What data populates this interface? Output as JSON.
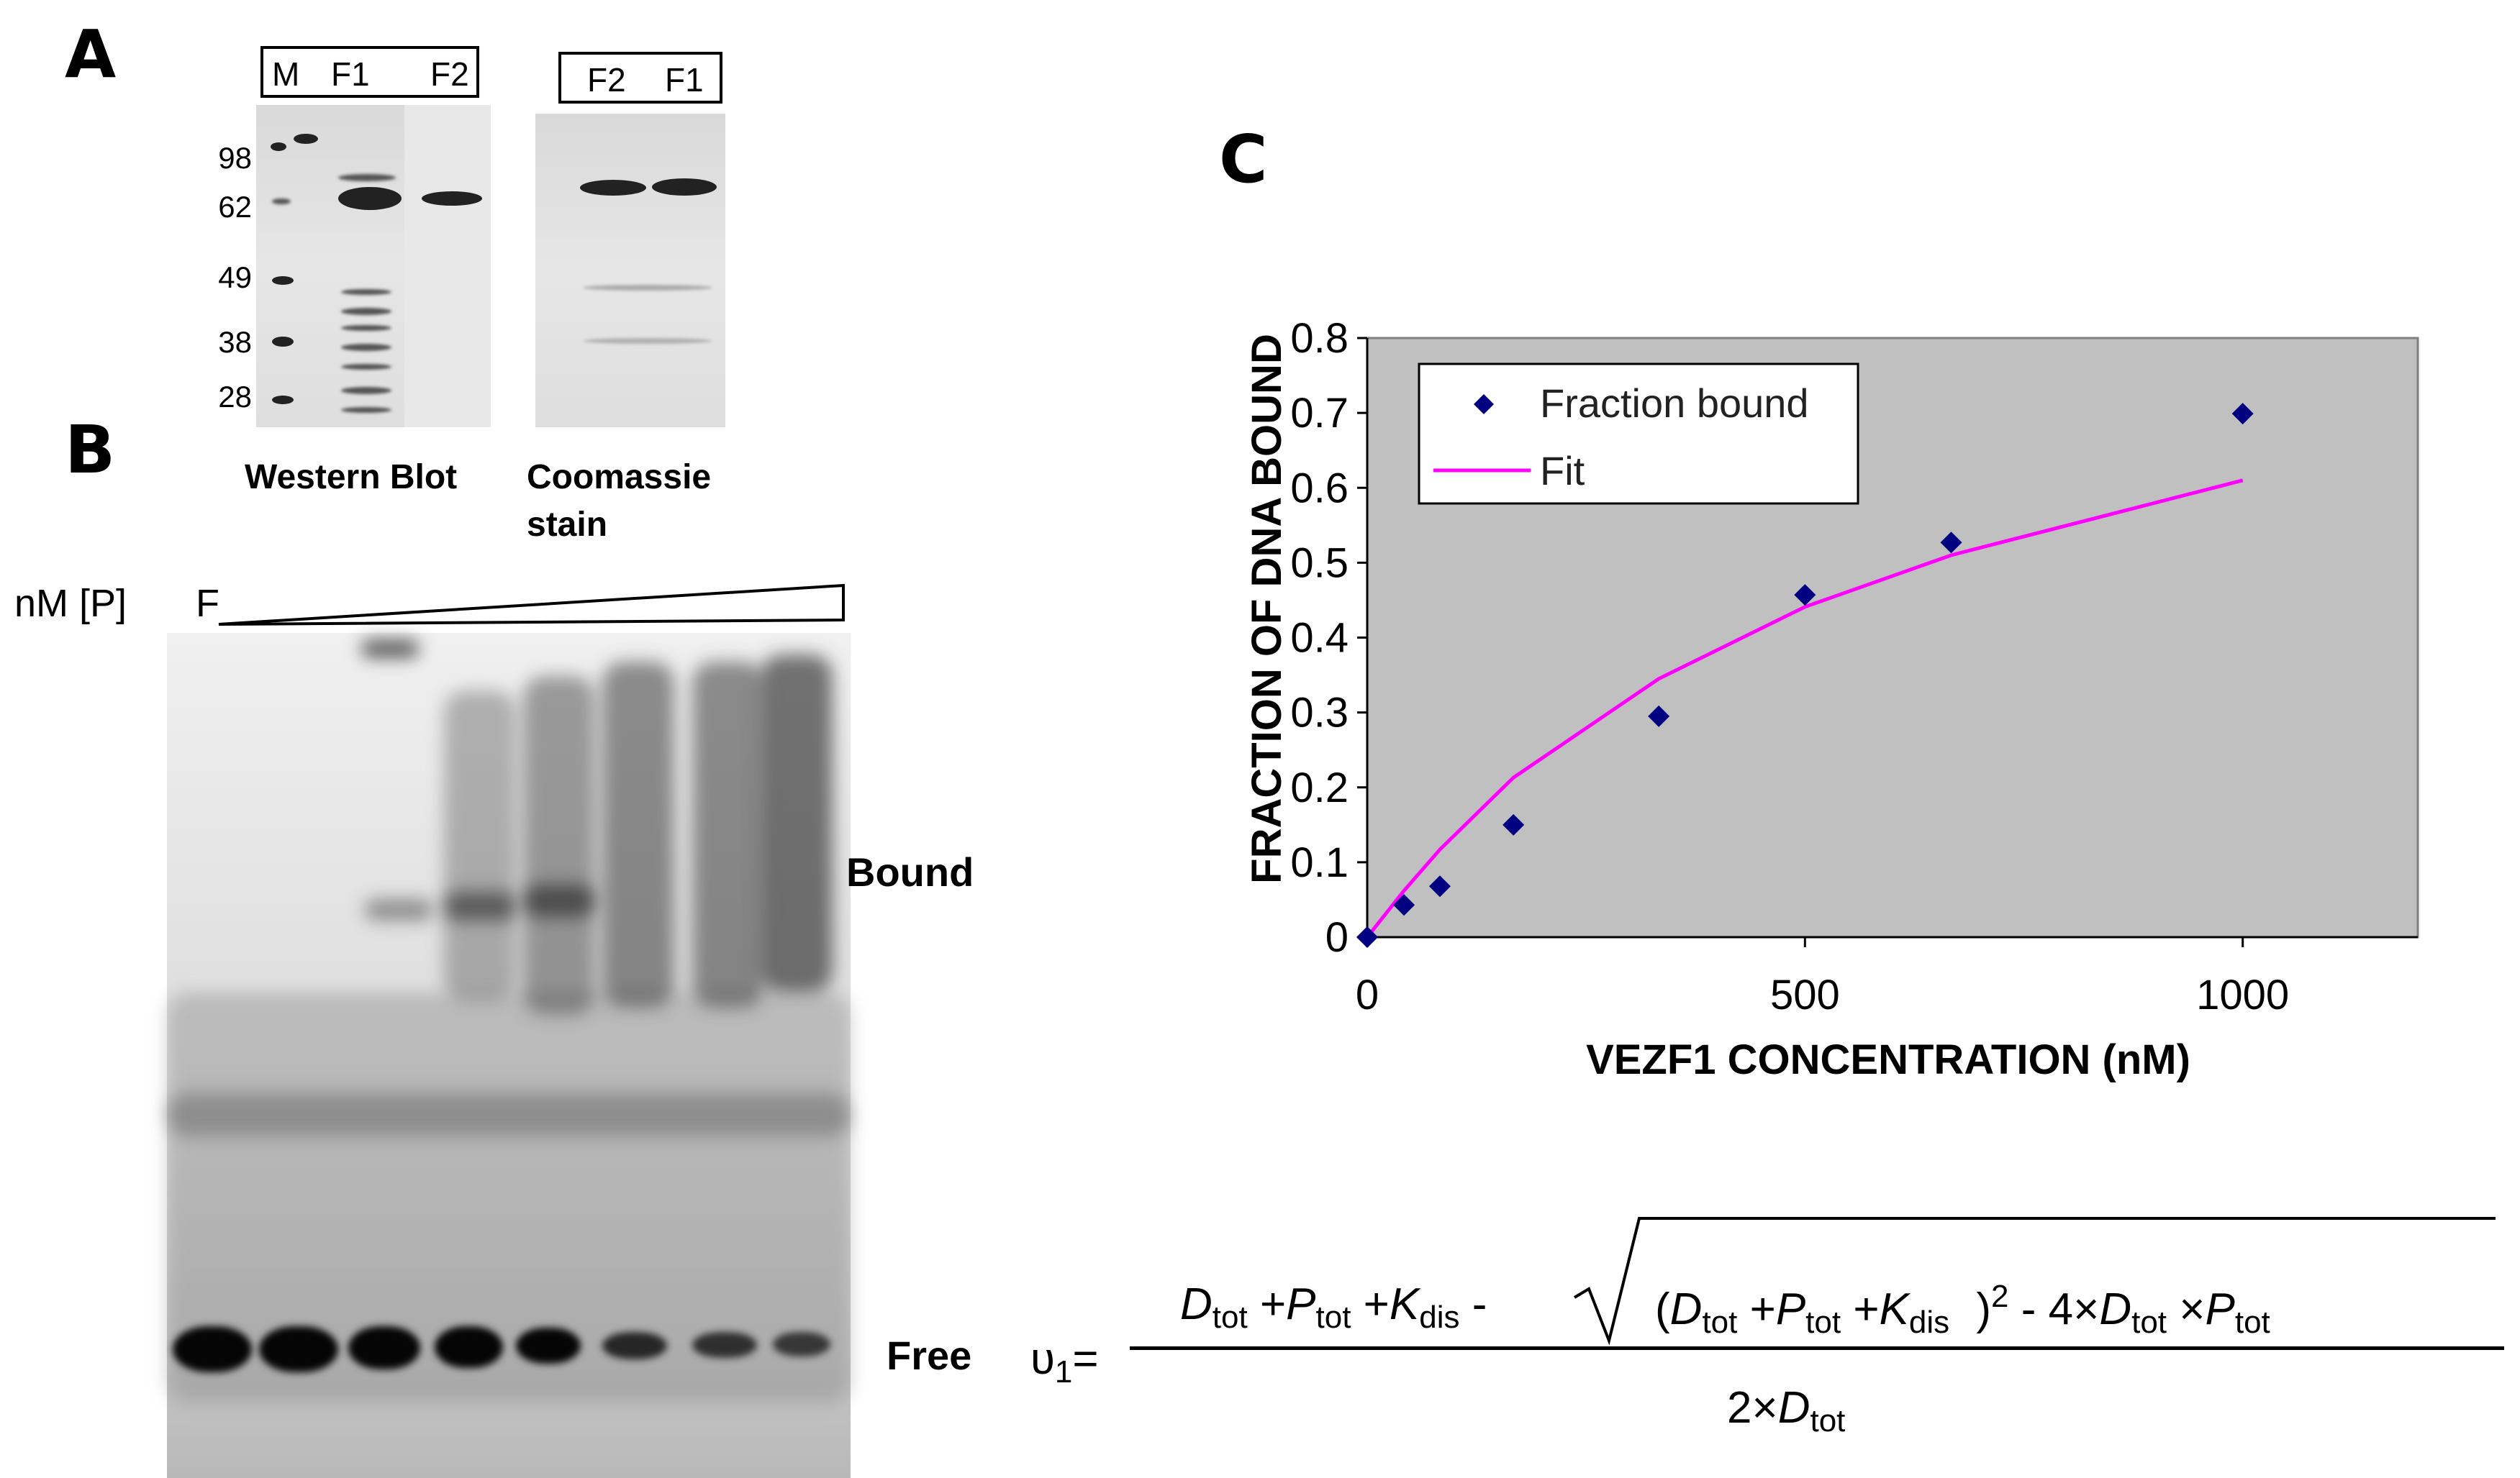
{
  "panels": {
    "a": "A",
    "b": "B",
    "c": "C"
  },
  "western": {
    "lanes": [
      "M",
      "F1",
      "F2"
    ],
    "markers": [
      "98",
      "62",
      "49",
      "38",
      "28"
    ],
    "caption": "Western Blot"
  },
  "coomassie": {
    "lanes": [
      "F2",
      "F1"
    ],
    "caption_line1": "Coomassie",
    "caption_line2": "stain"
  },
  "gel": {
    "conc_label": "nM [P]",
    "free_lane": "F",
    "bound_label": "Bound",
    "free_label": "Free"
  },
  "chart_data": {
    "type": "scatter",
    "title": "",
    "xlabel": "VEZF1 CONCENTRATION (nM)",
    "ylabel": "FRACTION OF DNA BOUND",
    "xlim": [
      0,
      1200
    ],
    "ylim": [
      0,
      0.8
    ],
    "xticks": [
      0,
      500,
      1000
    ],
    "yticks": [
      0,
      0.1,
      0.2,
      0.3,
      0.4,
      0.5,
      0.6,
      0.7,
      0.8
    ],
    "ytick_labels": [
      "0",
      "0.1",
      "0.2",
      "0.3",
      "0.4",
      "0.5",
      "0.6",
      "0.7",
      "0.8"
    ],
    "xtick_labels": [
      "0",
      "500",
      "1000"
    ],
    "legend_position": "top-left",
    "background": "#c0c0c0",
    "series": [
      {
        "name": "Fraction bound",
        "kind": "scatter",
        "marker": "diamond",
        "color": "#000080",
        "x": [
          0,
          42,
          83,
          167,
          333,
          500,
          667,
          1000
        ],
        "y": [
          0.0,
          0.043,
          0.068,
          0.15,
          0.295,
          0.457,
          0.527,
          0.699
        ]
      },
      {
        "name": "Fit",
        "kind": "line",
        "color": "#ff00ff",
        "x": [
          0,
          42,
          83,
          167,
          333,
          500,
          667,
          1000
        ],
        "y": [
          0.0,
          0.062,
          0.117,
          0.213,
          0.345,
          0.441,
          0.51,
          0.61
        ]
      }
    ]
  },
  "equation": {
    "lhs": "υ",
    "lhs_sub": "1",
    "equals": "=",
    "D": "D",
    "P": "P",
    "K": "K",
    "tot": "tot",
    "dis": "dis",
    "plus": "+",
    "minus": "-",
    "open_paren": "(",
    "close_paren": ")",
    "sq": "2",
    "four_times": "- 4×",
    "times": "×",
    "two_times": "2×"
  }
}
